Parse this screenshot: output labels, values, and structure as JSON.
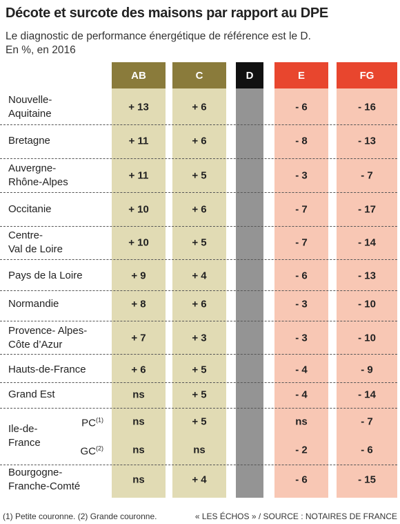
{
  "title": "Décote et surcote des maisons par rapport au DPE",
  "subtitle": "Le diagnostic de performance énergétique de référence est le D.",
  "unit": "En %, en 2016",
  "columns": [
    {
      "label": "AB",
      "color": "#8a7b3b",
      "fill": "#e1dbb4"
    },
    {
      "label": "C",
      "color": "#8a7b3b",
      "fill": "#e1dbb4"
    },
    {
      "label": "D",
      "color": "#111111",
      "fill": "#949494"
    },
    {
      "label": "E",
      "color": "#e8462e",
      "fill": "#f8c7b4"
    },
    {
      "label": "FG",
      "color": "#e8462e",
      "fill": "#f8c7b4"
    }
  ],
  "rows": [
    {
      "region": "Nouvelle-\nAquitaine",
      "values": [
        "+ 13",
        "+ 6",
        "- 6",
        "- 16"
      ]
    },
    {
      "region": "Bretagne",
      "values": [
        "+ 11",
        "+ 6",
        "- 8",
        "- 13"
      ]
    },
    {
      "region": "Auvergne-\nRhône-Alpes",
      "values": [
        "+ 11",
        "+ 5",
        "- 3",
        "- 7"
      ]
    },
    {
      "region": "Occitanie",
      "values": [
        "+ 10",
        "+ 6",
        "- 7",
        "- 17"
      ]
    },
    {
      "region": "Centre-\nVal de Loire",
      "values": [
        "+ 10",
        "+ 5",
        "- 7",
        "- 14"
      ]
    },
    {
      "region": "Pays de la Loire",
      "values": [
        "+ 9",
        "+ 4",
        "- 6",
        "- 13"
      ]
    },
    {
      "region": "Normandie",
      "values": [
        "+ 8",
        "+ 6",
        "- 3",
        "- 10"
      ]
    },
    {
      "region": "Provence- Alpes-\nCôte d’Azur",
      "values": [
        "+ 7",
        "+ 3",
        "- 3",
        "- 10"
      ]
    },
    {
      "region": "Hauts-de-France",
      "values": [
        "+ 6",
        "+ 5",
        "- 4",
        "- 9"
      ]
    },
    {
      "region": "Grand Est",
      "values": [
        "ns",
        "+ 5",
        "- 4",
        "- 14"
      ]
    },
    {
      "region": "Ile-de-\nFrance",
      "subrows": [
        {
          "label": "PC",
          "note": "(1)",
          "values": [
            "ns",
            "+ 5",
            "ns",
            "- 7"
          ]
        },
        {
          "label": "GC",
          "note": "(2)",
          "values": [
            "ns",
            "ns",
            "- 2",
            "- 6"
          ]
        }
      ]
    },
    {
      "region": "Bourgogne-\nFranche-Comté",
      "values": [
        "ns",
        "+ 4",
        "- 6",
        "- 15"
      ]
    }
  ],
  "footnote": "(1) Petite couronne. (2) Grande couronne.",
  "source": "« LES ÉCHOS » / SOURCE : NOTAIRES DE FRANCE"
}
